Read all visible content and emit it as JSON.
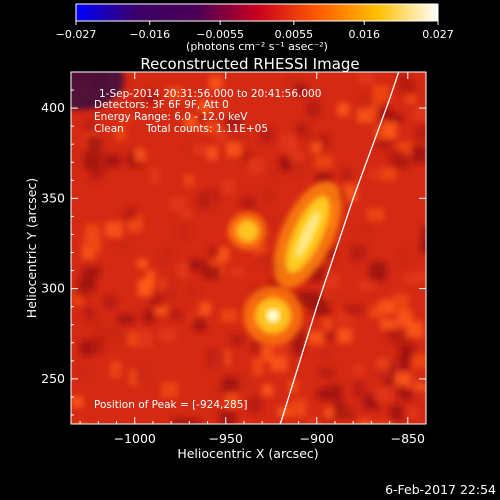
{
  "chart_data": {
    "type": "heatmap",
    "title": "Reconstructed RHESSI Image",
    "xlabel": "Heliocentric X (arcsec)",
    "ylabel": "Heliocentric Y (arcsec)",
    "xlim": [
      -1035,
      -840
    ],
    "ylim": [
      225,
      420
    ],
    "x_ticks": [
      {
        "value": -1000,
        "label": "−1000"
      },
      {
        "value": -950,
        "label": "−950"
      },
      {
        "value": -900,
        "label": "−900"
      },
      {
        "value": -850,
        "label": "−850"
      }
    ],
    "y_ticks": [
      {
        "value": 250,
        "label": "250"
      },
      {
        "value": 300,
        "label": "300"
      },
      {
        "value": 350,
        "label": "350"
      },
      {
        "value": 400,
        "label": "400"
      }
    ],
    "colorbar": {
      "min": -0.027,
      "max": 0.027,
      "ticks": [
        {
          "value": -0.027,
          "label": "−0.027"
        },
        {
          "value": -0.016,
          "label": "−0.016"
        },
        {
          "value": -0.0055,
          "label": "−0.0055"
        },
        {
          "value": 0.0055,
          "label": "0.0055"
        },
        {
          "value": 0.016,
          "label": "0.016"
        },
        {
          "value": 0.027,
          "label": "0.027"
        }
      ],
      "unit_label": "(photons cm⁻² s⁻¹ asec⁻²)",
      "colors": [
        "#0000ff",
        "#3b0068",
        "#4a0055",
        "#c8001e",
        "#ff5a00",
        "#ffc000",
        "#ffffff"
      ]
    },
    "sources": [
      {
        "x": -924,
        "y": 285,
        "relative_intensity": 1.0
      },
      {
        "x": -905,
        "y": 330,
        "relative_intensity": 0.85
      },
      {
        "x": -938,
        "y": 332,
        "relative_intensity": 0.55
      }
    ],
    "limb_curve": [
      [
        -920,
        225
      ],
      [
        -900,
        290
      ],
      [
        -880,
        350
      ],
      [
        -860,
        405
      ],
      [
        -855,
        420
      ]
    ],
    "annotations": {
      "date_range": "1-Sep-2014 20:31:56.000 to 20:41:56.000",
      "detectors": "Detectors: 3F 6F 9F, Att 0",
      "energy": "Energy Range: 6.0 - 12.0 keV",
      "clean": "Clean",
      "counts": "Total counts: 1.11E+05",
      "peak": "Position of Peak = [-924,285]"
    },
    "footer_date": "6-Feb-2017 22:54"
  }
}
